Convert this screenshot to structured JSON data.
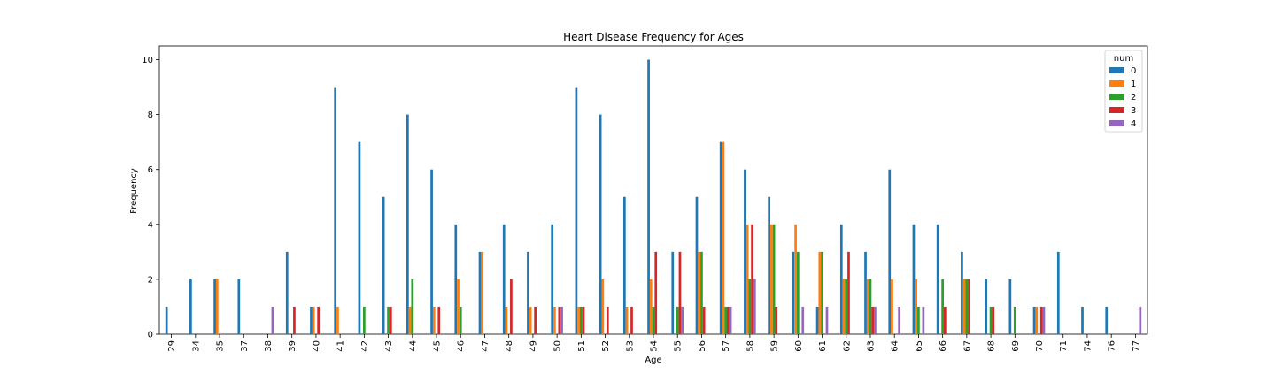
{
  "chart_data": {
    "type": "bar",
    "title": "Heart Disease Frequency for Ages",
    "xlabel": "Age",
    "ylabel": "Frequency",
    "ylim": [
      0,
      10.5
    ],
    "yticks": [
      0,
      2,
      4,
      6,
      8,
      10
    ],
    "legend": {
      "title": "num",
      "placement": "top-right"
    },
    "categories": [
      "29",
      "34",
      "35",
      "37",
      "38",
      "39",
      "40",
      "41",
      "42",
      "43",
      "44",
      "45",
      "46",
      "47",
      "48",
      "49",
      "50",
      "51",
      "52",
      "53",
      "54",
      "55",
      "56",
      "57",
      "58",
      "59",
      "60",
      "61",
      "62",
      "63",
      "64",
      "65",
      "66",
      "67",
      "68",
      "69",
      "70",
      "71",
      "74",
      "76",
      "77"
    ],
    "series": [
      {
        "name": "0",
        "color": "#1f77b4",
        "values": [
          1,
          2,
          2,
          2,
          0,
          3,
          1,
          9,
          7,
          5,
          8,
          6,
          4,
          3,
          4,
          3,
          4,
          9,
          8,
          5,
          10,
          3,
          5,
          7,
          6,
          5,
          3,
          1,
          4,
          3,
          6,
          4,
          4,
          3,
          2,
          2,
          1,
          3,
          1,
          1,
          0
        ]
      },
      {
        "name": "1",
        "color": "#ff7f0e",
        "values": [
          0,
          0,
          2,
          0,
          0,
          0,
          1,
          1,
          0,
          0,
          1,
          1,
          2,
          3,
          1,
          1,
          1,
          1,
          2,
          1,
          2,
          0,
          3,
          7,
          4,
          4,
          4,
          3,
          2,
          2,
          2,
          2,
          0,
          2,
          0,
          0,
          1,
          0,
          0,
          0,
          0
        ]
      },
      {
        "name": "2",
        "color": "#2ca02c",
        "values": [
          0,
          0,
          0,
          0,
          0,
          0,
          0,
          0,
          1,
          1,
          2,
          0,
          1,
          0,
          0,
          0,
          0,
          1,
          0,
          0,
          1,
          1,
          3,
          1,
          2,
          4,
          3,
          3,
          2,
          2,
          0,
          1,
          2,
          2,
          1,
          1,
          0,
          0,
          0,
          0,
          0
        ]
      },
      {
        "name": "3",
        "color": "#d62728",
        "values": [
          0,
          0,
          0,
          0,
          0,
          1,
          1,
          0,
          0,
          1,
          0,
          1,
          0,
          0,
          2,
          1,
          1,
          1,
          1,
          1,
          3,
          3,
          1,
          1,
          4,
          1,
          0,
          0,
          3,
          1,
          0,
          0,
          1,
          2,
          1,
          0,
          1,
          0,
          0,
          0,
          0
        ]
      },
      {
        "name": "4",
        "color": "#9467bd",
        "values": [
          0,
          0,
          0,
          0,
          1,
          0,
          0,
          0,
          0,
          0,
          0,
          0,
          0,
          0,
          0,
          0,
          1,
          0,
          0,
          0,
          0,
          1,
          0,
          1,
          2,
          0,
          1,
          1,
          0,
          1,
          1,
          1,
          0,
          0,
          0,
          0,
          1,
          0,
          0,
          0,
          1
        ]
      }
    ]
  }
}
